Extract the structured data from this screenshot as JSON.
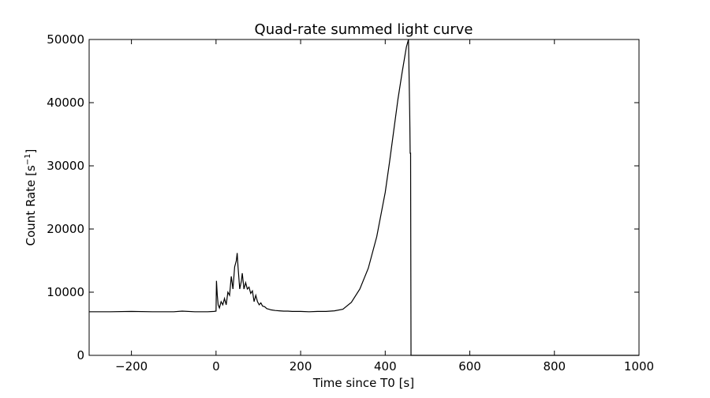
{
  "chart_data": {
    "type": "line",
    "title": "Quad-rate summed light curve",
    "xlabel": "Time since T0 [s]",
    "ylabel": {
      "base": "Count Rate [s",
      "sup": "−1",
      "close": "]"
    },
    "xlim": [
      -300,
      1000
    ],
    "ylim": [
      0,
      50000
    ],
    "xticks": [
      -200,
      0,
      200,
      400,
      600,
      800,
      1000
    ],
    "xtick_labels": [
      "−200",
      "0",
      "200",
      "400",
      "600",
      "800",
      "1000"
    ],
    "yticks": [
      0,
      10000,
      20000,
      30000,
      40000,
      50000
    ],
    "ytick_labels": [
      "0",
      "10000",
      "20000",
      "30000",
      "40000",
      "50000"
    ],
    "grid": false,
    "line_color": "#000000",
    "series": [
      {
        "x": [
          -300,
          -250,
          -200,
          -150,
          -100,
          -80,
          -50,
          -20,
          -5,
          0,
          1,
          3,
          5,
          8,
          12,
          16,
          20,
          24,
          28,
          32,
          36,
          40,
          44,
          48,
          50,
          52,
          56,
          60,
          62,
          66,
          70,
          74,
          78,
          82,
          86,
          90,
          94,
          98,
          102,
          106,
          110,
          115,
          120,
          125,
          130,
          140,
          150,
          160,
          170,
          180,
          200,
          220,
          240,
          260,
          280,
          300,
          320,
          340,
          360,
          380,
          400,
          410,
          420,
          430,
          440,
          450,
          455,
          458,
          459,
          460,
          461,
          462,
          463,
          470,
          500,
          600,
          700,
          800,
          900,
          1000
        ],
        "y": [
          6900,
          6900,
          6950,
          6900,
          6900,
          7000,
          6900,
          6900,
          6950,
          7000,
          11800,
          9500,
          8000,
          7500,
          8500,
          8000,
          9000,
          8000,
          10000,
          9500,
          12500,
          10500,
          14000,
          15000,
          16200,
          14000,
          10500,
          11800,
          13000,
          10500,
          11500,
          10500,
          10800,
          9800,
          10200,
          8500,
          9500,
          8500,
          8000,
          8300,
          7800,
          7700,
          7400,
          7300,
          7200,
          7100,
          7050,
          7000,
          7000,
          6950,
          6950,
          6900,
          6950,
          6950,
          7050,
          7300,
          8400,
          10500,
          13800,
          18800,
          25800,
          30500,
          35500,
          40500,
          44800,
          48800,
          50000,
          38000,
          32000,
          32000,
          0,
          0,
          0,
          0,
          0,
          0,
          0,
          0,
          0,
          0
        ]
      }
    ]
  }
}
